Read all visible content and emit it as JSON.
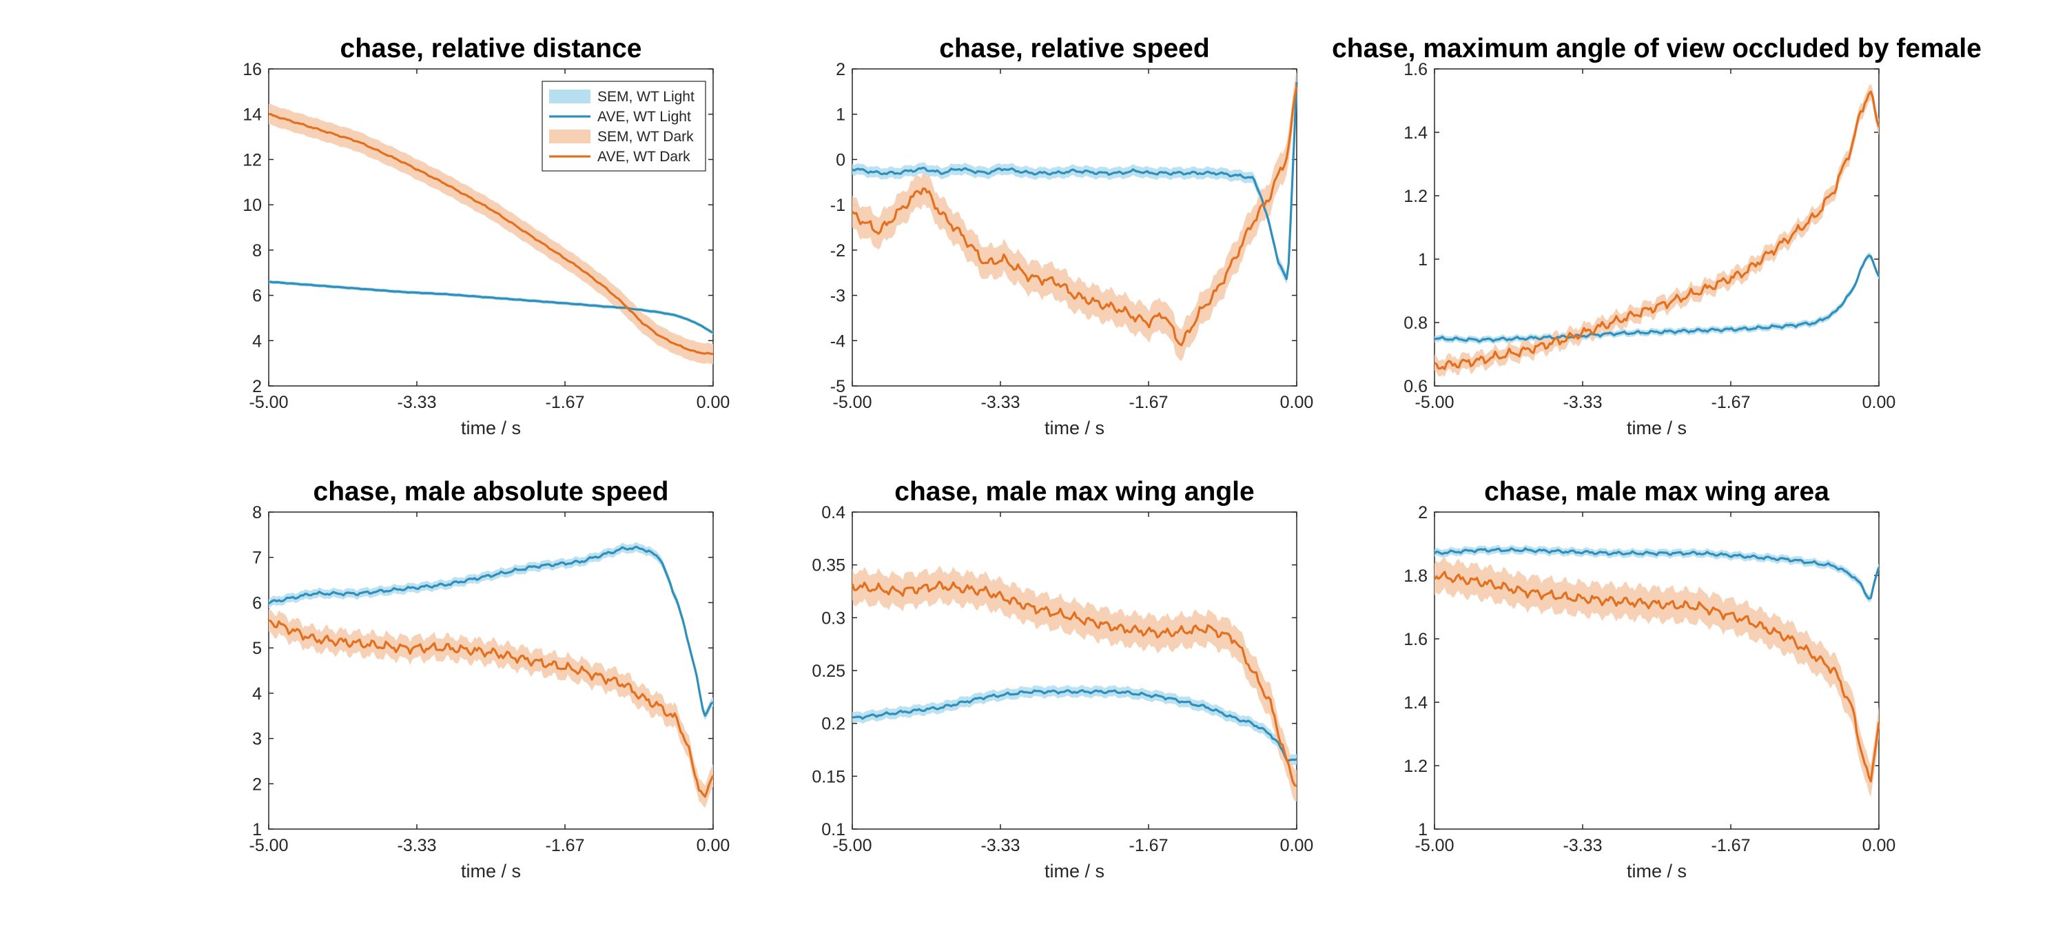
{
  "figure": {
    "x_ticks": [
      "-5.00",
      "-3.33",
      "-1.67",
      "0.00"
    ],
    "xlabel": "time / s",
    "legend": {
      "placement": "top-right of first panel",
      "entries": [
        {
          "label": "SEM, WT Light",
          "kind": "band",
          "color": "#b8dff0"
        },
        {
          "label": "AVE, WT Light",
          "kind": "line",
          "color": "#2f8fba"
        },
        {
          "label": "SEM, WT Dark",
          "kind": "band",
          "color": "#f7cfb2"
        },
        {
          "label": "AVE, WT Dark",
          "kind": "line",
          "color": "#e3701f"
        }
      ]
    }
  },
  "chart_data": [
    {
      "type": "line",
      "title": "chase, relative distance",
      "xlabel": "time / s",
      "xlim": [
        -5,
        0
      ],
      "ylim": [
        2,
        16
      ],
      "y_ticks": [
        "2",
        "4",
        "6",
        "8",
        "10",
        "12",
        "14",
        "16"
      ],
      "x": [
        -5.0,
        -4.5,
        -4.0,
        -3.5,
        -3.0,
        -2.5,
        -2.0,
        -1.5,
        -1.2,
        -1.0,
        -0.8,
        -0.6,
        -0.4,
        -0.2,
        0.0
      ],
      "series": [
        {
          "name": "AVE, WT Light",
          "values": [
            6.6,
            6.45,
            6.3,
            6.15,
            6.05,
            5.9,
            5.75,
            5.6,
            5.5,
            5.45,
            5.35,
            5.25,
            5.1,
            4.8,
            4.35
          ],
          "sem": 0.08
        },
        {
          "name": "AVE, WT Dark",
          "values": [
            14.0,
            13.4,
            12.8,
            11.9,
            10.9,
            9.8,
            8.5,
            7.2,
            6.3,
            5.6,
            4.8,
            4.2,
            3.8,
            3.5,
            3.4
          ],
          "sem": 0.45
        }
      ]
    },
    {
      "type": "line",
      "title": "chase, relative speed",
      "xlabel": "time / s",
      "xlim": [
        -5,
        0
      ],
      "ylim": [
        -5,
        2
      ],
      "y_ticks": [
        "-5",
        "-4",
        "-3",
        "-2",
        "-1",
        "0",
        "1",
        "2"
      ],
      "x": [
        -5.0,
        -4.7,
        -4.5,
        -4.2,
        -4.0,
        -3.8,
        -3.5,
        -3.3,
        -3.0,
        -2.7,
        -2.5,
        -2.2,
        -2.0,
        -1.8,
        -1.67,
        -1.5,
        -1.3,
        -1.1,
        -0.9,
        -0.7,
        -0.5,
        -0.4,
        -0.3,
        -0.2,
        -0.1,
        0.0
      ],
      "series": [
        {
          "name": "AVE, WT Light",
          "values": [
            -0.2,
            -0.3,
            -0.3,
            -0.2,
            -0.3,
            -0.2,
            -0.3,
            -0.2,
            -0.3,
            -0.3,
            -0.25,
            -0.3,
            -0.3,
            -0.25,
            -0.3,
            -0.3,
            -0.3,
            -0.3,
            -0.3,
            -0.35,
            -0.4,
            -0.8,
            -1.5,
            -2.3,
            -2.7,
            1.7
          ],
          "sem": 0.12
        },
        {
          "name": "AVE, WT Dark",
          "values": [
            -1.2,
            -1.6,
            -1.2,
            -0.6,
            -1.2,
            -1.6,
            -2.3,
            -2.2,
            -2.6,
            -2.7,
            -3.0,
            -3.2,
            -3.3,
            -3.5,
            -3.6,
            -3.4,
            -4.1,
            -3.4,
            -2.9,
            -2.2,
            -1.4,
            -1.1,
            -0.8,
            -0.3,
            0.1,
            1.7
          ],
          "sem": 0.35
        }
      ]
    },
    {
      "type": "line",
      "title": "chase, maximum angle of view occluded by female",
      "xlabel": "time / s",
      "xlim": [
        -5,
        0
      ],
      "ylim": [
        0.6,
        1.6
      ],
      "y_ticks": [
        "0.6",
        "0.8",
        "1",
        "1.2",
        "1.4",
        "1.6"
      ],
      "x": [
        -5.0,
        -4.5,
        -4.0,
        -3.5,
        -3.0,
        -2.5,
        -2.0,
        -1.5,
        -1.0,
        -0.7,
        -0.5,
        -0.3,
        -0.2,
        -0.1,
        0.0
      ],
      "series": [
        {
          "name": "AVE, WT Light",
          "values": [
            0.75,
            0.745,
            0.75,
            0.755,
            0.765,
            0.77,
            0.775,
            0.78,
            0.79,
            0.8,
            0.83,
            0.9,
            0.97,
            1.02,
            0.94
          ],
          "sem": 0.01
        },
        {
          "name": "AVE, WT Dark",
          "values": [
            0.66,
            0.68,
            0.71,
            0.75,
            0.8,
            0.85,
            0.9,
            0.96,
            1.07,
            1.14,
            1.22,
            1.36,
            1.47,
            1.53,
            1.42
          ],
          "sem": 0.025
        }
      ]
    },
    {
      "type": "line",
      "title": "chase, male absolute speed",
      "xlabel": "time / s",
      "xlim": [
        -5,
        0
      ],
      "ylim": [
        1,
        8
      ],
      "y_ticks": [
        "1",
        "2",
        "3",
        "4",
        "5",
        "6",
        "7",
        "8"
      ],
      "x": [
        -5.0,
        -4.5,
        -4.0,
        -3.5,
        -3.0,
        -2.5,
        -2.0,
        -1.5,
        -1.0,
        -0.8,
        -0.6,
        -0.4,
        -0.3,
        -0.2,
        -0.1,
        0.0
      ],
      "series": [
        {
          "name": "AVE, WT Light",
          "values": [
            6.0,
            6.2,
            6.2,
            6.3,
            6.4,
            6.6,
            6.8,
            6.9,
            7.2,
            7.2,
            7.0,
            6.0,
            5.3,
            4.5,
            3.5,
            3.8
          ],
          "sem": 0.1
        },
        {
          "name": "AVE, WT Dark",
          "values": [
            5.6,
            5.2,
            5.1,
            5.0,
            5.0,
            4.9,
            4.7,
            4.5,
            4.2,
            3.9,
            3.7,
            3.4,
            2.9,
            2.2,
            1.6,
            2.3
          ],
          "sem": 0.25
        }
      ]
    },
    {
      "type": "line",
      "title": "chase, male max wing angle",
      "xlabel": "time / s",
      "xlim": [
        -5,
        0
      ],
      "ylim": [
        0.1,
        0.4
      ],
      "y_ticks": [
        "0.1",
        "0.15",
        "0.2",
        "0.25",
        "0.3",
        "0.35",
        "0.4"
      ],
      "x": [
        -5.0,
        -4.5,
        -4.0,
        -3.5,
        -3.0,
        -2.5,
        -2.0,
        -1.5,
        -1.0,
        -0.7,
        -0.5,
        -0.3,
        -0.2,
        -0.1,
        0.0
      ],
      "series": [
        {
          "name": "AVE, WT Light",
          "values": [
            0.205,
            0.21,
            0.215,
            0.225,
            0.23,
            0.23,
            0.23,
            0.225,
            0.215,
            0.205,
            0.2,
            0.19,
            0.18,
            0.165,
            0.165
          ],
          "sem": 0.005
        },
        {
          "name": "AVE, WT Dark",
          "values": [
            0.33,
            0.325,
            0.33,
            0.325,
            0.31,
            0.3,
            0.29,
            0.285,
            0.29,
            0.28,
            0.25,
            0.22,
            0.19,
            0.16,
            0.14
          ],
          "sem": 0.015
        }
      ]
    },
    {
      "type": "line",
      "title": "chase, male max wing area",
      "xlabel": "time / s",
      "xlim": [
        -5,
        0
      ],
      "ylim": [
        1,
        2
      ],
      "y_ticks": [
        "1",
        "1.2",
        "1.4",
        "1.6",
        "1.8",
        "2"
      ],
      "x": [
        -5.0,
        -4.5,
        -4.0,
        -3.5,
        -3.0,
        -2.5,
        -2.0,
        -1.5,
        -1.0,
        -0.5,
        -0.3,
        -0.2,
        -0.1,
        0.0
      ],
      "series": [
        {
          "name": "AVE, WT Light",
          "values": [
            1.87,
            1.88,
            1.88,
            1.875,
            1.87,
            1.87,
            1.87,
            1.86,
            1.85,
            1.83,
            1.8,
            1.77,
            1.72,
            1.83
          ],
          "sem": 0.012
        },
        {
          "name": "AVE, WT Dark",
          "values": [
            1.8,
            1.78,
            1.75,
            1.73,
            1.72,
            1.71,
            1.7,
            1.66,
            1.6,
            1.5,
            1.38,
            1.25,
            1.14,
            1.34
          ],
          "sem": 0.05
        }
      ]
    }
  ]
}
